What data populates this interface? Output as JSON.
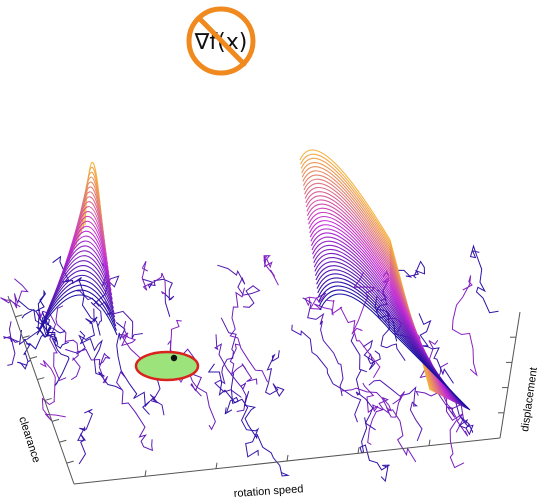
{
  "badge": {
    "text": "∇f(x)",
    "color": "#f0891e"
  },
  "axes": {
    "x_label": "rotation speed",
    "y_label": "clearance",
    "z_label": "displacement"
  },
  "colors": {
    "low": "#1a0fa0",
    "mid": "#c22bd6",
    "high": "#f7b13b",
    "optimum_fill": "#9be37a",
    "optimum_stroke": "#d9231f"
  }
}
